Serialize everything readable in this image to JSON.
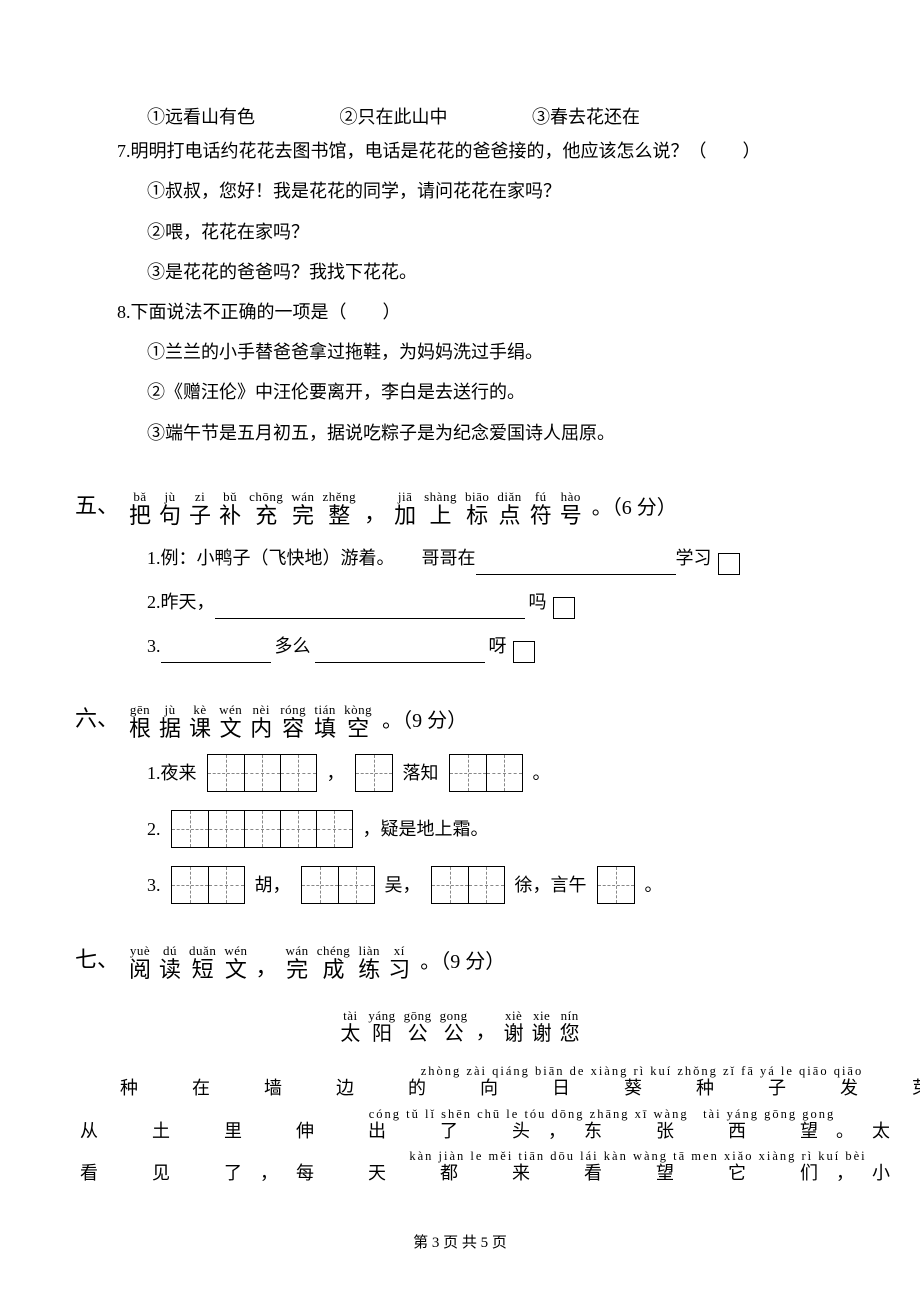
{
  "q6_opts": {
    "a": "①远看山有色",
    "b": "②只在此山中",
    "c": "③春去花还在"
  },
  "q7": {
    "stem": "7.明明打电话约花花去图书馆，电话是花花的爸爸接的，他应该怎么说？（　　）",
    "o1": "①叔叔，您好！我是花花的同学，请问花花在家吗？",
    "o2": "②喂，花花在家吗？",
    "o3": "③是花花的爸爸吗？我找下花花。"
  },
  "q8": {
    "stem": "8.下面说法不正确的一项是（　　）",
    "o1": "①兰兰的小手替爸爸拿过拖鞋，为妈妈洗过手绢。",
    "o2": "②《赠汪伦》中汪伦要离开，李白是去送行的。",
    "o3": "③端午节是五月初五，据说吃粽子是为纪念爱国诗人屈原。"
  },
  "sec5": {
    "num": "五、",
    "chars": [
      {
        "p": "bǎ",
        "h": "把"
      },
      {
        "p": "jù",
        "h": "句"
      },
      {
        "p": "zi",
        "h": "子"
      },
      {
        "p": "bǔ",
        "h": "补"
      },
      {
        "p": "chōng",
        "h": "充"
      },
      {
        "p": "wán",
        "h": "完"
      },
      {
        "p": "zhěng",
        "h": "整"
      },
      {
        "p": "",
        "h": "，"
      },
      {
        "p": "jiā",
        "h": "加"
      },
      {
        "p": "shàng",
        "h": "上"
      },
      {
        "p": "biāo",
        "h": "标"
      },
      {
        "p": "diǎn",
        "h": "点"
      },
      {
        "p": "fú",
        "h": "符"
      },
      {
        "p": "hào",
        "h": "号"
      }
    ],
    "tail": "。（6 分）",
    "r1a": "1.例：小鸭子（飞快地）游着。　　哥哥在",
    "r1b": "学习",
    "r2a": "2.昨天，",
    "r2b": "吗",
    "r3a": "3.",
    "r3b": "多么",
    "r3c": "呀"
  },
  "sec6": {
    "num": "六、",
    "chars": [
      {
        "p": "gēn",
        "h": "根"
      },
      {
        "p": "jù",
        "h": "据"
      },
      {
        "p": "kè",
        "h": "课"
      },
      {
        "p": "wén",
        "h": "文"
      },
      {
        "p": "nèi",
        "h": "内"
      },
      {
        "p": "róng",
        "h": "容"
      },
      {
        "p": "tián",
        "h": "填"
      },
      {
        "p": "kòng",
        "h": "空"
      }
    ],
    "tail": "。（9 分）",
    "r1": {
      "lead": "1.夜来",
      "mid": "落知",
      "end": "。"
    },
    "r2": {
      "lead": "2.",
      "tail": "，疑是地上霜。"
    },
    "r3": {
      "lead": "3.",
      "a": "胡，",
      "b": "吴，",
      "c": "徐，言午",
      "end": "。"
    }
  },
  "sec7": {
    "num": "七、",
    "chars": [
      {
        "p": "yuè",
        "h": "阅"
      },
      {
        "p": "dú",
        "h": "读"
      },
      {
        "p": "duǎn",
        "h": "短"
      },
      {
        "p": "wén",
        "h": "文"
      },
      {
        "p": "",
        "h": "，"
      },
      {
        "p": "wán",
        "h": "完"
      },
      {
        "p": "chéng",
        "h": "成"
      },
      {
        "p": "liàn",
        "h": "练"
      },
      {
        "p": "xí",
        "h": "习"
      }
    ],
    "tail": "。（9 分）",
    "title": [
      {
        "p": "tài",
        "h": "太"
      },
      {
        "p": "yáng",
        "h": "阳"
      },
      {
        "p": "gōng",
        "h": "公"
      },
      {
        "p": "gong",
        "h": "公"
      },
      {
        "p": "",
        "h": "，"
      },
      {
        "p": "xiè",
        "h": "谢"
      },
      {
        "p": "xie",
        "h": "谢"
      },
      {
        "p": "nín",
        "h": "您"
      }
    ],
    "l1": {
      "p": "zhòng zài qiáng biān de xiàng rì kuí zhǒng zǐ fā yá le qiāo qiāo",
      "h": "种　在　墙　边　的　向　日　葵　种　子　发　芽　了，悄　悄"
    },
    "l2": {
      "p": "cóng tǔ lǐ shēn chū le tóu dōng zhāng xī wàng　tài yáng gōng gong",
      "h": "从　土　里　伸　出　了　头，东　张　西　望。太　阳　公　公"
    },
    "l3": {
      "p": "kàn jiàn le měi tiān dōu lái kàn wàng tā men xiǎo xiàng rì kuí bèi",
      "h": "看　见　了，每　天　都　来　看　望　它　们，小　向　日　葵　被"
    }
  },
  "footer": "第 3 页 共 5 页"
}
